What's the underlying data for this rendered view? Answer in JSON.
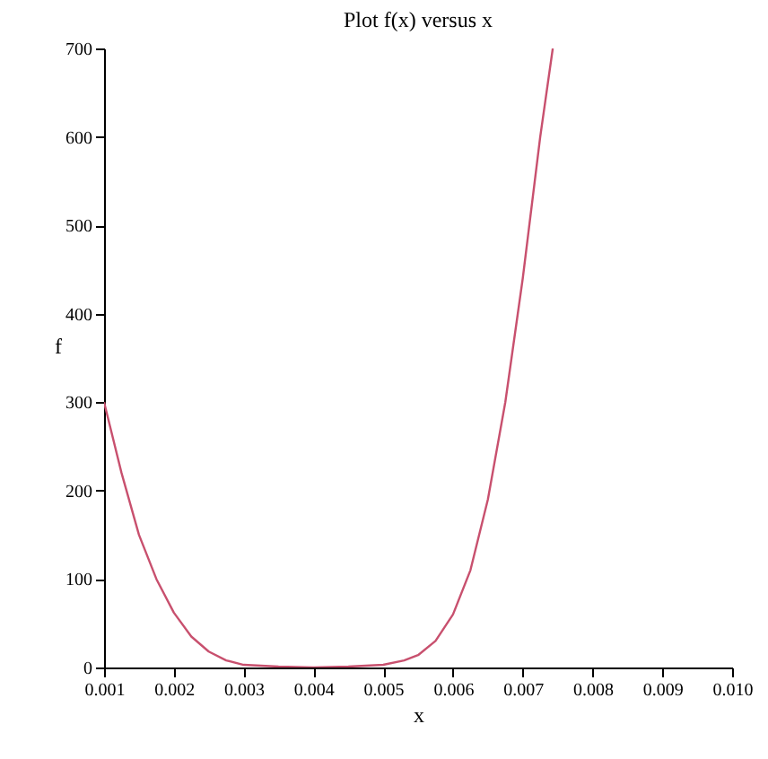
{
  "chart_data": {
    "type": "line",
    "title": "Plot f(x) versus x",
    "xlabel": "x",
    "ylabel": "f",
    "x": [
      0.001,
      0.00125,
      0.0015,
      0.00175,
      0.002,
      0.00225,
      0.0025,
      0.00275,
      0.003,
      0.0035,
      0.004,
      0.0045,
      0.005,
      0.0053,
      0.0055,
      0.00575,
      0.006,
      0.00625,
      0.0065,
      0.00675,
      0.007,
      0.00725,
      0.00743
    ],
    "series": [
      {
        "color": "#c8506e",
        "values": [
          300,
          220,
          150,
          100,
          62,
          35,
          18,
          8,
          3,
          1,
          0,
          1,
          3,
          8,
          14,
          30,
          60,
          110,
          190,
          300,
          440,
          600,
          700
        ]
      }
    ],
    "xlim": [
      0.001,
      0.01
    ],
    "xticks": [
      0.001,
      0.002,
      0.003,
      0.004,
      0.005,
      0.006,
      0.007,
      0.008,
      0.009,
      {
        "value": 0.01,
        "label": "0.010"
      }
    ],
    "ylim": [
      0,
      700
    ],
    "yticks": [
      0,
      100,
      200,
      300,
      400,
      500,
      600,
      700
    ],
    "grid": false
  }
}
